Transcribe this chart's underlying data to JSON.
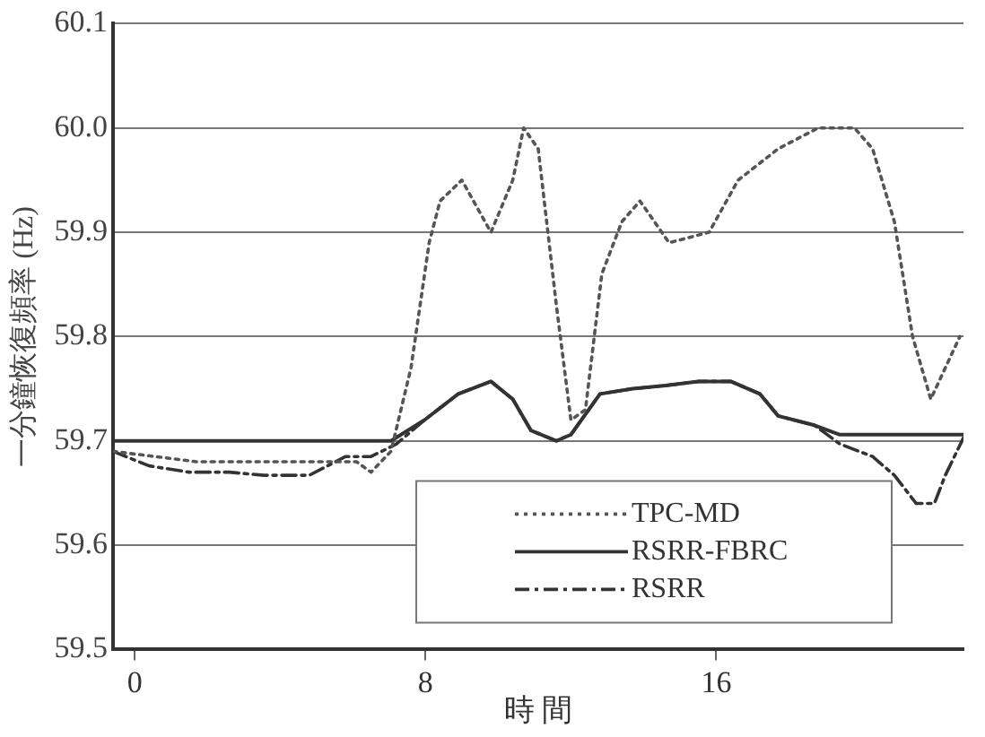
{
  "chart_data": {
    "type": "line",
    "xlabel": "時 間",
    "ylabel": "一分鐘恢復頻率 (Hz)",
    "xlim": [
      -0.6,
      22.8
    ],
    "xticks": [
      0,
      8,
      16
    ],
    "ylim": [
      59.5,
      60.1
    ],
    "yticks": [
      59.5,
      59.6,
      59.7,
      59.8,
      59.9,
      {
        "value": 60.0,
        "label": "60.0"
      },
      60.1
    ],
    "grid": "y",
    "legend": "bottom right",
    "marker": "none",
    "series": [
      {
        "name": "TPC-MD",
        "color": "#555555",
        "line_style": "dotted",
        "x": [
          -0.6,
          1.7,
          3.55,
          5.4,
          6.1,
          6.5,
          7.05,
          7.6,
          8.1,
          8.4,
          9.0,
          9.8,
          10.4,
          10.7,
          11.1,
          11.6,
          12.0,
          12.4,
          12.85,
          13.4,
          13.9,
          14.7,
          15.8,
          16.6,
          17.7,
          18.8,
          19.8,
          20.3,
          20.9,
          21.4,
          21.9,
          22.3,
          22.7
        ],
        "values": [
          59.69,
          59.68,
          59.68,
          59.68,
          59.68,
          59.67,
          59.69,
          59.77,
          59.89,
          59.93,
          59.95,
          59.9,
          59.95,
          60.0,
          59.98,
          59.83,
          59.72,
          59.73,
          59.86,
          59.91,
          59.93,
          59.89,
          59.9,
          59.95,
          59.98,
          60.0,
          60.0,
          59.98,
          59.91,
          59.8,
          59.74,
          59.77,
          59.8
        ]
      },
      {
        "name": "RSRR-FBRC",
        "color": "#333333",
        "line_style": "solid",
        "x": [
          -0.6,
          7.05,
          7.97,
          8.9,
          9.8,
          10.4,
          10.9,
          11.6,
          12.0,
          12.8,
          13.7,
          14.6,
          15.5,
          16.4,
          17.2,
          17.7,
          18.7,
          19.4,
          20.1,
          22.8
        ],
        "values": [
          59.7,
          59.7,
          59.72,
          59.745,
          59.757,
          59.74,
          59.71,
          59.7,
          59.706,
          59.745,
          59.75,
          59.753,
          59.757,
          59.757,
          59.745,
          59.724,
          59.715,
          59.706,
          59.706,
          59.706
        ]
      },
      {
        "name": "RSRR",
        "color": "#333333",
        "line_style": "dashdot",
        "x": [
          -0.6,
          0.4,
          1.5,
          2.6,
          3.55,
          4.8,
          5.8,
          6.5,
          7.2,
          7.97,
          8.9,
          9.8,
          10.4,
          10.9,
          11.6,
          12.0,
          12.8,
          13.7,
          14.6,
          15.5,
          16.4,
          17.2,
          17.7,
          18.7,
          19.4,
          20.3,
          20.9,
          21.5,
          22.0,
          22.3,
          22.8
        ],
        "values": [
          59.69,
          59.676,
          59.67,
          59.67,
          59.667,
          59.667,
          59.685,
          59.685,
          59.697,
          59.72,
          59.745,
          59.757,
          59.74,
          59.71,
          59.7,
          59.706,
          59.745,
          59.75,
          59.753,
          59.757,
          59.757,
          59.745,
          59.724,
          59.715,
          59.697,
          59.685,
          59.667,
          59.64,
          59.64,
          59.667,
          59.703
        ]
      }
    ]
  }
}
